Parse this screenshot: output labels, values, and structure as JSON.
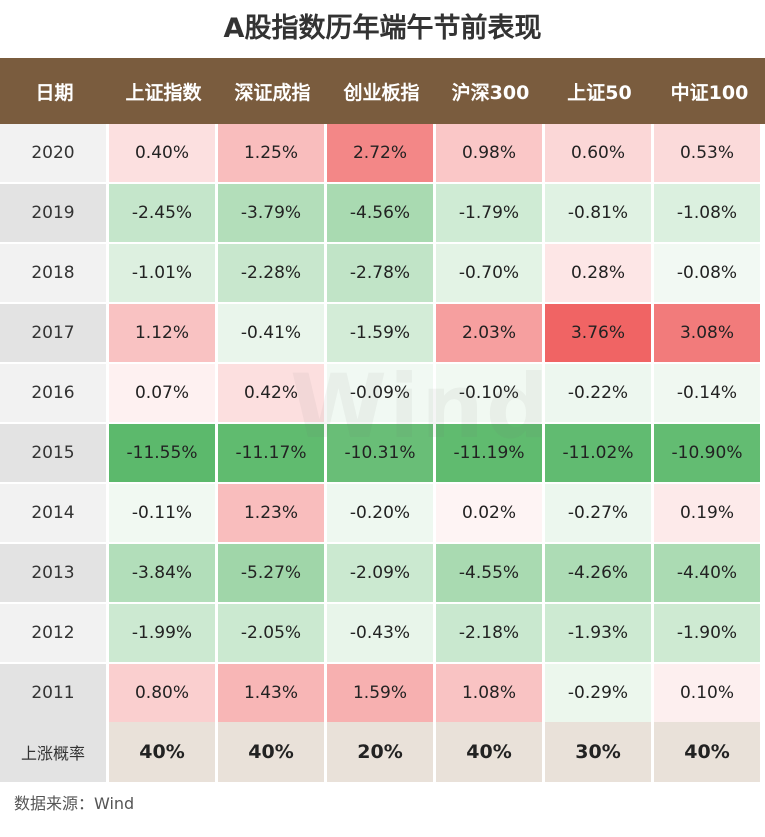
{
  "title": "A股指数历年端午节前表现",
  "source": "数据来源：Wind",
  "watermark": "Wind",
  "colors": {
    "header_bg": "#7a5c3e",
    "positive": "#f06464",
    "negative": "#5cb96c",
    "probability_bg": "#e9e1d9"
  },
  "chart_data": {
    "type": "table",
    "columns": [
      "日期",
      "上证指数",
      "深证成指",
      "创业板指",
      "沪深300",
      "上证50",
      "中证100"
    ],
    "rows": [
      {
        "year": "2020",
        "values": [
          "0.40%",
          "1.25%",
          "2.72%",
          "0.98%",
          "0.60%",
          "0.53%"
        ]
      },
      {
        "year": "2019",
        "values": [
          "-2.45%",
          "-3.79%",
          "-4.56%",
          "-1.79%",
          "-0.81%",
          "-1.08%"
        ]
      },
      {
        "year": "2018",
        "values": [
          "-1.01%",
          "-2.28%",
          "-2.78%",
          "-0.70%",
          "0.28%",
          "-0.08%"
        ]
      },
      {
        "year": "2017",
        "values": [
          "1.12%",
          "-0.41%",
          "-1.59%",
          "2.03%",
          "3.76%",
          "3.08%"
        ]
      },
      {
        "year": "2016",
        "values": [
          "0.07%",
          "0.42%",
          "-0.09%",
          "-0.10%",
          "-0.22%",
          "-0.14%"
        ]
      },
      {
        "year": "2015",
        "values": [
          "-11.55%",
          "-11.17%",
          "-10.31%",
          "-11.19%",
          "-11.02%",
          "-10.90%"
        ]
      },
      {
        "year": "2014",
        "values": [
          "-0.11%",
          "1.23%",
          "-0.20%",
          "0.02%",
          "-0.27%",
          "0.19%"
        ]
      },
      {
        "year": "2013",
        "values": [
          "-3.84%",
          "-5.27%",
          "-2.09%",
          "-4.55%",
          "-4.26%",
          "-4.40%"
        ]
      },
      {
        "year": "2012",
        "values": [
          "-1.99%",
          "-2.05%",
          "-0.43%",
          "-2.18%",
          "-1.93%",
          "-1.90%"
        ]
      },
      {
        "year": "2011",
        "values": [
          "0.80%",
          "1.43%",
          "1.59%",
          "1.08%",
          "-0.29%",
          "0.10%"
        ]
      }
    ],
    "probability": {
      "label": "上涨概率",
      "values": [
        "40%",
        "40%",
        "20%",
        "40%",
        "30%",
        "40%"
      ]
    }
  }
}
